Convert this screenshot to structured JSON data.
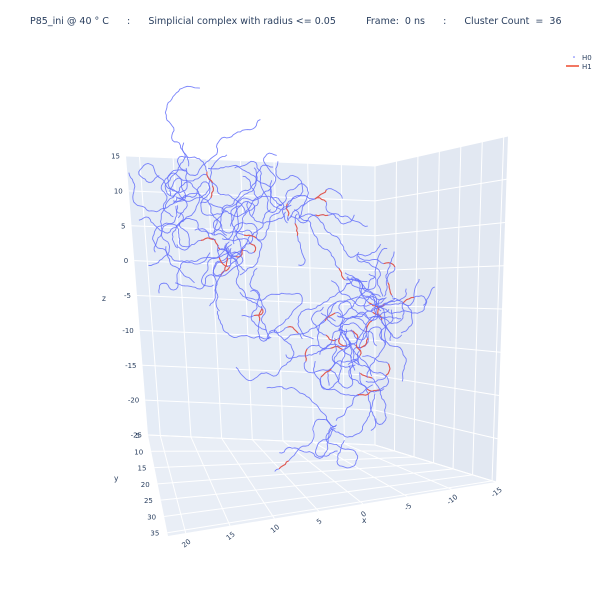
{
  "title": {
    "sample": "P85_ini @ 40 ° C",
    "sep": ":",
    "description": "Simplicial complex with radius <= 0.05",
    "frame": "Frame:  0 ns",
    "cluster": "Cluster Count  =  36"
  },
  "chart_data": {
    "type": "scatter3d",
    "title": "P85_ini @ 40 ° C     :     Simplicial complex with radius <= 0.05          Frame:  0 ns          :          Cluster Count  =  36",
    "axes": {
      "x": {
        "label": "x",
        "range": [
          -15,
          22
        ],
        "ticks": [
          20,
          15,
          10,
          5,
          0,
          -5,
          -10,
          -15
        ]
      },
      "y": {
        "label": "y",
        "range": [
          5,
          36
        ],
        "ticks": [
          5,
          10,
          15,
          20,
          25,
          30,
          35
        ]
      },
      "z": {
        "label": "z",
        "range": [
          -25,
          15
        ],
        "ticks": [
          15,
          10,
          5,
          0,
          -5,
          -10,
          -15,
          -20,
          -25
        ]
      }
    },
    "series": [
      {
        "name": "H0",
        "color": "#636efa",
        "marker": "point"
      },
      {
        "name": "H1",
        "color": "#ef553b",
        "marker": "line"
      }
    ],
    "legend": "top-right",
    "grid": true
  }
}
